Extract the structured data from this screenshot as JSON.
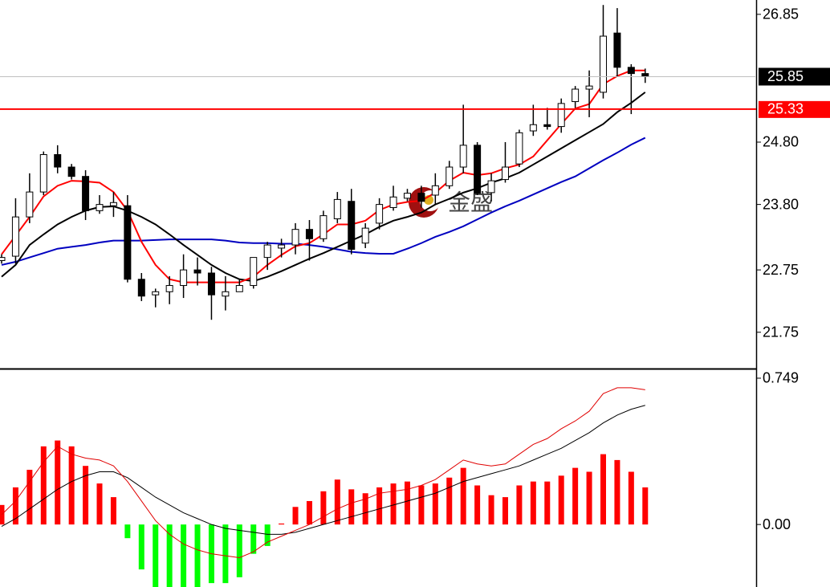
{
  "chart_data": [
    {
      "type": "candlestick",
      "open": [
        22.9,
        22.97,
        23.6,
        24.0,
        24.6,
        24.4,
        24.25,
        23.7,
        23.78,
        23.78,
        22.6,
        22.35,
        22.4,
        22.5,
        22.75,
        22.7,
        22.33,
        22.4,
        22.5,
        22.95,
        23.1,
        23.15,
        23.4,
        23.25,
        23.57,
        23.85,
        23.18,
        23.5,
        23.75,
        23.9,
        23.98,
        23.95,
        24.1,
        24.4,
        24.75,
        23.99,
        24.2,
        24.45,
        24.98,
        25.08,
        25.05,
        25.45,
        25.65,
        25.6,
        26.55,
        26.0,
        25.9
      ],
      "high": [
        23.0,
        23.9,
        24.3,
        24.65,
        24.75,
        24.45,
        24.35,
        23.95,
        24.0,
        23.95,
        22.7,
        22.45,
        22.65,
        23.0,
        22.95,
        22.8,
        22.65,
        22.6,
        22.95,
        23.2,
        23.25,
        23.5,
        23.55,
        23.7,
        24.0,
        24.05,
        23.5,
        23.9,
        24.1,
        24.05,
        24.1,
        24.3,
        24.5,
        25.4,
        24.8,
        24.3,
        24.8,
        25.0,
        25.4,
        25.35,
        25.5,
        25.7,
        25.95,
        27.0,
        26.95,
        26.05,
        25.98
      ],
      "low": [
        22.85,
        22.85,
        23.5,
        23.95,
        24.3,
        24.2,
        23.55,
        23.65,
        23.6,
        22.55,
        22.25,
        22.15,
        22.2,
        22.3,
        22.5,
        21.95,
        22.1,
        22.4,
        22.45,
        22.75,
        22.95,
        23.0,
        22.9,
        23.2,
        23.5,
        23.0,
        23.1,
        23.4,
        23.7,
        23.85,
        23.75,
        23.8,
        24.05,
        24.3,
        23.95,
        23.85,
        24.15,
        24.4,
        24.9,
        25.0,
        24.95,
        25.35,
        25.2,
        25.5,
        25.85,
        25.25,
        25.75
      ],
      "close": [
        22.95,
        23.6,
        24.0,
        24.6,
        24.4,
        24.25,
        23.7,
        23.8,
        23.83,
        22.6,
        22.33,
        22.4,
        22.5,
        22.75,
        22.7,
        22.35,
        22.4,
        22.5,
        22.95,
        23.15,
        23.15,
        23.4,
        23.25,
        23.62,
        23.88,
        23.08,
        23.42,
        23.8,
        23.92,
        23.98,
        23.85,
        24.1,
        24.4,
        24.75,
        23.98,
        24.18,
        24.4,
        24.95,
        25.08,
        25.05,
        25.42,
        25.65,
        25.7,
        26.5,
        26.0,
        25.9,
        25.85
      ],
      "up_color": "#ffffff",
      "down_color": "#000000",
      "series": [
        {
          "color": "#0000c0",
          "values": [
            22.83,
            22.88,
            22.95,
            23.02,
            23.09,
            23.12,
            23.15,
            23.19,
            23.22,
            23.22,
            23.22,
            23.23,
            23.24,
            23.24,
            23.24,
            23.24,
            23.22,
            23.19,
            23.18,
            23.18,
            23.17,
            23.17,
            23.15,
            23.12,
            23.08,
            23.04,
            23.02,
            23.01,
            23.01,
            23.09,
            23.18,
            23.28,
            23.36,
            23.45,
            23.56,
            23.67,
            23.77,
            23.86,
            23.96,
            24.06,
            24.16,
            24.25,
            24.38,
            24.51,
            24.63,
            24.76,
            24.87
          ]
        },
        {
          "color": "#000000",
          "values": [
            22.64,
            22.83,
            23.15,
            23.32,
            23.48,
            23.6,
            23.7,
            23.76,
            23.77,
            23.7,
            23.6,
            23.48,
            23.32,
            23.15,
            22.99,
            22.83,
            22.7,
            22.6,
            22.57,
            22.64,
            22.73,
            22.83,
            22.93,
            23.02,
            23.12,
            23.22,
            23.32,
            23.44,
            23.54,
            23.6,
            23.67,
            23.8,
            23.89,
            23.99,
            24.06,
            24.15,
            24.22,
            24.31,
            24.44,
            24.57,
            24.7,
            24.83,
            24.96,
            25.09,
            25.28,
            25.43,
            25.6
          ]
        },
        {
          "color": "#ff0000",
          "values": [
            23.0,
            23.3,
            23.6,
            23.93,
            24.1,
            24.18,
            24.17,
            24.15,
            24.0,
            23.7,
            23.2,
            22.83,
            22.6,
            22.55,
            22.55,
            22.55,
            22.55,
            22.55,
            22.64,
            22.83,
            22.99,
            23.13,
            23.18,
            23.32,
            23.48,
            23.48,
            23.54,
            23.71,
            23.8,
            23.84,
            23.86,
            23.99,
            24.18,
            24.31,
            24.27,
            24.3,
            24.38,
            24.44,
            24.57,
            24.83,
            25.09,
            25.34,
            25.41,
            25.73,
            25.86,
            25.95,
            25.95
          ]
        }
      ],
      "ylim": [
        21.18,
        27.08
      ],
      "yticks": [
        26.85,
        {
          "value": 24.8,
          "label": "24.80"
        },
        {
          "value": 23.8,
          "label": "23.80"
        },
        22.75,
        21.75
      ],
      "price_line": {
        "value": 25.85,
        "label": "25.85"
      },
      "level_line": {
        "value": 25.33,
        "label": "25.33",
        "color": "#ff0000"
      },
      "watermark": "金盛"
    },
    {
      "type": "macd",
      "values": [
        0.1,
        0.19,
        0.28,
        0.4,
        0.43,
        0.4,
        0.3,
        0.21,
        0.14,
        -0.07,
        -0.23,
        -0.32,
        -0.34,
        -0.32,
        -0.32,
        -0.3,
        -0.3,
        -0.27,
        -0.15,
        -0.11,
        0.005,
        0.09,
        0.12,
        0.17,
        0.23,
        0.18,
        0.16,
        0.19,
        0.21,
        0.22,
        0.2,
        0.21,
        0.24,
        0.29,
        0.2,
        0.15,
        0.14,
        0.2,
        0.22,
        0.22,
        0.25,
        0.29,
        0.27,
        0.36,
        0.33,
        0.27,
        0.19
      ],
      "up_color": "#ff0000",
      "down_color": "#00ff00",
      "series": [
        {
          "color": "#000000",
          "values": [
            -0.01,
            0.03,
            0.08,
            0.13,
            0.18,
            0.22,
            0.25,
            0.27,
            0.27,
            0.24,
            0.19,
            0.14,
            0.1,
            0.06,
            0.03,
            0.0,
            -0.02,
            -0.03,
            -0.04,
            -0.05,
            -0.05,
            -0.04,
            -0.02,
            0.0,
            0.02,
            0.04,
            0.06,
            0.08,
            0.1,
            0.12,
            0.14,
            0.16,
            0.19,
            0.22,
            0.24,
            0.26,
            0.28,
            0.3,
            0.33,
            0.36,
            0.39,
            0.43,
            0.47,
            0.52,
            0.56,
            0.59,
            0.61
          ]
        },
        {
          "color": "#e00000",
          "values": [
            0.05,
            0.12,
            0.22,
            0.32,
            0.4,
            0.36,
            0.34,
            0.33,
            0.3,
            0.22,
            0.12,
            0.02,
            -0.05,
            -0.1,
            -0.13,
            -0.15,
            -0.16,
            -0.17,
            -0.14,
            -0.09,
            -0.06,
            -0.03,
            0.0,
            0.04,
            0.08,
            0.11,
            0.13,
            0.16,
            0.17,
            0.18,
            0.2,
            0.23,
            0.28,
            0.33,
            0.31,
            0.3,
            0.31,
            0.36,
            0.41,
            0.44,
            0.49,
            0.53,
            0.58,
            0.67,
            0.7,
            0.7,
            0.69
          ]
        }
      ],
      "ylim": [
        -0.32,
        0.79
      ],
      "yticks": [
        0.749,
        {
          "value": 0,
          "label": "0.00"
        }
      ]
    }
  ]
}
